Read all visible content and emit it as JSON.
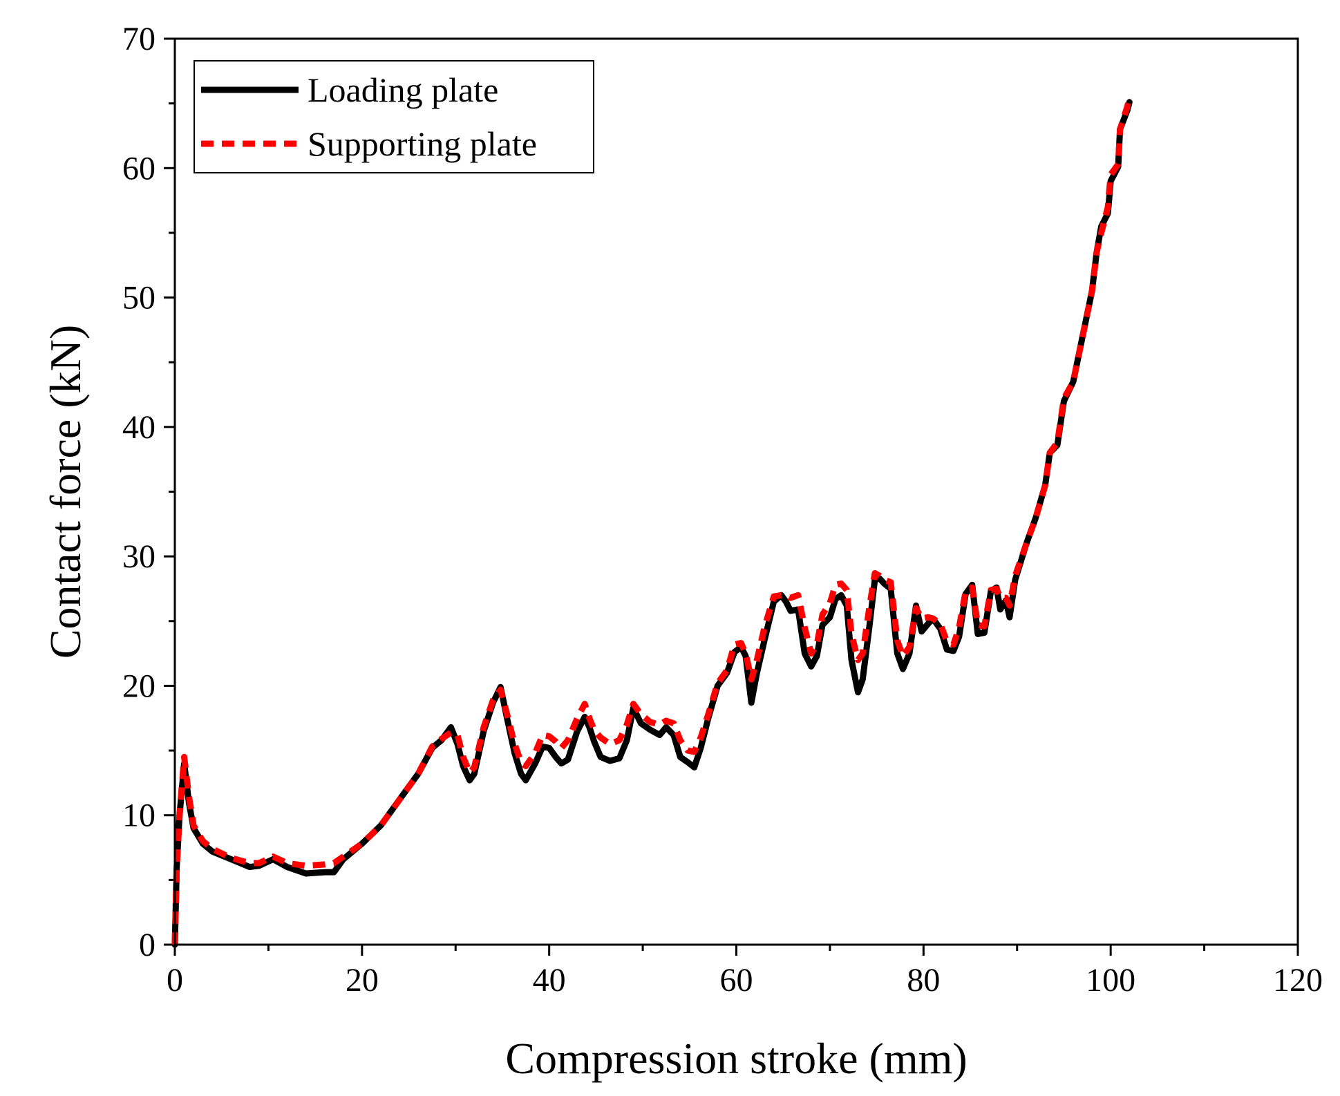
{
  "chart_data": {
    "type": "line",
    "title": "",
    "xlabel": "Compression stroke (mm)",
    "ylabel": "Contact force (kN)",
    "xlim": [
      0,
      120
    ],
    "ylim": [
      0,
      70
    ],
    "x_ticks": [
      0,
      20,
      40,
      60,
      80,
      100,
      120
    ],
    "y_ticks": [
      0,
      10,
      20,
      30,
      40,
      50,
      60,
      70
    ],
    "x_tick_labels": [
      "0",
      "20",
      "40",
      "60",
      "80",
      "100",
      "120"
    ],
    "y_tick_labels": [
      "0",
      "10",
      "20",
      "30",
      "40",
      "50",
      "60",
      "70"
    ],
    "grid": false,
    "legend_position": "top-left",
    "series": [
      {
        "name": "Loading plate",
        "color": "#000000",
        "style": "solid",
        "points": [
          [
            0,
            0
          ],
          [
            0.2,
            6
          ],
          [
            0.5,
            10
          ],
          [
            1,
            14
          ],
          [
            1.5,
            11
          ],
          [
            2,
            9
          ],
          [
            3,
            7.8
          ],
          [
            4,
            7.2
          ],
          [
            6,
            6.6
          ],
          [
            8,
            6
          ],
          [
            9,
            6.1
          ],
          [
            10.5,
            6.6
          ],
          [
            12,
            6
          ],
          [
            14,
            5.5
          ],
          [
            16,
            5.6
          ],
          [
            17,
            5.6
          ],
          [
            18,
            6.6
          ],
          [
            20,
            7.8
          ],
          [
            22,
            9.2
          ],
          [
            24,
            11.2
          ],
          [
            26,
            13.2
          ],
          [
            27.5,
            15.2
          ],
          [
            28.5,
            15.8
          ],
          [
            29.5,
            16.8
          ],
          [
            30.2,
            15.5
          ],
          [
            30.8,
            13.8
          ],
          [
            31.5,
            12.7
          ],
          [
            32,
            13.2
          ],
          [
            33,
            16.5
          ],
          [
            34,
            18.7
          ],
          [
            34.8,
            19.9
          ],
          [
            35.5,
            17.5
          ],
          [
            36.3,
            14.8
          ],
          [
            37,
            13.2
          ],
          [
            37.5,
            12.7
          ],
          [
            38.5,
            14
          ],
          [
            39.3,
            15.3
          ],
          [
            40,
            15.2
          ],
          [
            40.7,
            14.5
          ],
          [
            41.3,
            14
          ],
          [
            42,
            14.3
          ],
          [
            43,
            16.5
          ],
          [
            43.8,
            17.6
          ],
          [
            44.3,
            16.8
          ],
          [
            44.8,
            15.7
          ],
          [
            45.5,
            14.5
          ],
          [
            46.5,
            14.2
          ],
          [
            47.5,
            14.4
          ],
          [
            48.3,
            15.8
          ],
          [
            49,
            18.3
          ],
          [
            49.8,
            17.1
          ],
          [
            50.8,
            16.6
          ],
          [
            51.8,
            16.2
          ],
          [
            52.5,
            16.8
          ],
          [
            53.3,
            16.2
          ],
          [
            54,
            14.5
          ],
          [
            54.8,
            14.1
          ],
          [
            55.5,
            13.7
          ],
          [
            56.2,
            15.2
          ],
          [
            57,
            17.5
          ],
          [
            58,
            20
          ],
          [
            59,
            21
          ],
          [
            59.8,
            22.6
          ],
          [
            60.5,
            23
          ],
          [
            61,
            22.3
          ],
          [
            61.6,
            18.7
          ],
          [
            62.2,
            21
          ],
          [
            63,
            23.5
          ],
          [
            64,
            26.5
          ],
          [
            64.8,
            27
          ],
          [
            65.3,
            26.5
          ],
          [
            65.8,
            25.8
          ],
          [
            66.6,
            25.9
          ],
          [
            67.3,
            22.5
          ],
          [
            68,
            21.5
          ],
          [
            68.6,
            22.3
          ],
          [
            69.2,
            24.7
          ],
          [
            70,
            25.3
          ],
          [
            70.6,
            26.7
          ],
          [
            71.2,
            27
          ],
          [
            71.8,
            26.2
          ],
          [
            72.3,
            22
          ],
          [
            73,
            19.5
          ],
          [
            73.5,
            20.5
          ],
          [
            74.2,
            24.5
          ],
          [
            74.8,
            28.2
          ],
          [
            75.3,
            28.3
          ],
          [
            75.8,
            27.9
          ],
          [
            76.5,
            27.5
          ],
          [
            77.2,
            22.5
          ],
          [
            77.8,
            21.3
          ],
          [
            78.5,
            22.5
          ],
          [
            79.2,
            26.2
          ],
          [
            79.8,
            24.2
          ],
          [
            80.5,
            24.8
          ],
          [
            81,
            25.2
          ],
          [
            81.8,
            24.4
          ],
          [
            82.5,
            22.8
          ],
          [
            83.2,
            22.7
          ],
          [
            83.8,
            23.8
          ],
          [
            84.5,
            27.1
          ],
          [
            85.2,
            27.8
          ],
          [
            85.8,
            24
          ],
          [
            86.5,
            24.1
          ],
          [
            87.2,
            27.3
          ],
          [
            87.8,
            27.6
          ],
          [
            88.2,
            25.9
          ],
          [
            88.8,
            26.6
          ],
          [
            89.2,
            25.3
          ],
          [
            89.8,
            28.2
          ],
          [
            91,
            31
          ],
          [
            92,
            33
          ],
          [
            93,
            35.5
          ],
          [
            93.5,
            38
          ],
          [
            94.3,
            38.6
          ],
          [
            95,
            42
          ],
          [
            96,
            43.5
          ],
          [
            97,
            47
          ],
          [
            98,
            50.5
          ],
          [
            98.5,
            53.5
          ],
          [
            99,
            55.5
          ],
          [
            99.7,
            56.5
          ],
          [
            100,
            59
          ],
          [
            100.8,
            60.1
          ],
          [
            101,
            63
          ],
          [
            101.8,
            64.5
          ],
          [
            102,
            65.1
          ]
        ]
      },
      {
        "name": "Supporting plate",
        "color": "#ff0000",
        "style": "dashed",
        "points": [
          [
            0,
            0
          ],
          [
            0.2,
            6
          ],
          [
            0.5,
            10
          ],
          [
            1,
            14.5
          ],
          [
            1.5,
            11.5
          ],
          [
            2,
            9.2
          ],
          [
            3,
            8
          ],
          [
            4,
            7.4
          ],
          [
            6,
            6.7
          ],
          [
            8,
            6.3
          ],
          [
            9,
            6.3
          ],
          [
            10.5,
            6.8
          ],
          [
            12,
            6.3
          ],
          [
            14,
            6.1
          ],
          [
            16,
            6.2
          ],
          [
            17,
            6.3
          ],
          [
            18,
            6.8
          ],
          [
            20,
            7.8
          ],
          [
            22,
            9.2
          ],
          [
            24,
            11.2
          ],
          [
            26,
            13.2
          ],
          [
            27.5,
            15.3
          ],
          [
            28.5,
            15.9
          ],
          [
            29.5,
            16.4
          ],
          [
            30.2,
            16.2
          ],
          [
            30.8,
            14.5
          ],
          [
            31.5,
            13.3
          ],
          [
            32,
            13.7
          ],
          [
            33,
            16.8
          ],
          [
            34,
            18.9
          ],
          [
            34.8,
            19.7
          ],
          [
            35.5,
            17.8
          ],
          [
            36.3,
            15.5
          ],
          [
            37,
            14.1
          ],
          [
            37.5,
            13.8
          ],
          [
            38.5,
            14.8
          ],
          [
            39.3,
            16.2
          ],
          [
            40,
            16.1
          ],
          [
            40.7,
            15.7
          ],
          [
            41.3,
            15.2
          ],
          [
            42,
            15.8
          ],
          [
            43,
            17.5
          ],
          [
            43.8,
            18.6
          ],
          [
            44.3,
            17.5
          ],
          [
            44.8,
            16.6
          ],
          [
            45.5,
            16
          ],
          [
            46.5,
            15.5
          ],
          [
            47.5,
            15.8
          ],
          [
            48.3,
            17
          ],
          [
            49,
            18.6
          ],
          [
            49.8,
            17.8
          ],
          [
            50.8,
            17.2
          ],
          [
            51.8,
            17
          ],
          [
            52.5,
            17.3
          ],
          [
            53.3,
            17.1
          ],
          [
            54,
            15.8
          ],
          [
            54.8,
            15
          ],
          [
            55.5,
            14.9
          ],
          [
            56.2,
            16
          ],
          [
            57,
            17.8
          ],
          [
            58,
            20.2
          ],
          [
            59,
            21.2
          ],
          [
            59.8,
            23.2
          ],
          [
            60.5,
            23.3
          ],
          [
            61,
            22.5
          ],
          [
            61.6,
            20.5
          ],
          [
            62.2,
            22
          ],
          [
            63,
            24.5
          ],
          [
            64,
            26.9
          ],
          [
            64.8,
            27
          ],
          [
            65.3,
            27
          ],
          [
            65.8,
            26.8
          ],
          [
            66.6,
            27
          ],
          [
            67.3,
            24.5
          ],
          [
            68,
            22.5
          ],
          [
            68.6,
            23.2
          ],
          [
            69.2,
            25.5
          ],
          [
            70,
            26.4
          ],
          [
            70.6,
            27.8
          ],
          [
            71.2,
            27.9
          ],
          [
            71.8,
            27.4
          ],
          [
            72.3,
            24
          ],
          [
            73,
            22
          ],
          [
            73.5,
            22.5
          ],
          [
            74.2,
            26
          ],
          [
            74.8,
            28.7
          ],
          [
            75.3,
            28.5
          ],
          [
            75.8,
            28.2
          ],
          [
            76.5,
            28
          ],
          [
            77.2,
            23.5
          ],
          [
            77.8,
            22.3
          ],
          [
            78.5,
            23
          ],
          [
            79.2,
            26
          ],
          [
            79.8,
            25.2
          ],
          [
            80.5,
            25.3
          ],
          [
            81,
            25.2
          ],
          [
            81.8,
            24.8
          ],
          [
            82.5,
            23.4
          ],
          [
            83.2,
            23.2
          ],
          [
            83.8,
            24.5
          ],
          [
            84.5,
            27.3
          ],
          [
            85.2,
            27.6
          ],
          [
            85.8,
            24.7
          ],
          [
            86.5,
            24.6
          ],
          [
            87.2,
            27.4
          ],
          [
            87.8,
            27.5
          ],
          [
            88.2,
            26.8
          ],
          [
            88.8,
            26.8
          ],
          [
            89.2,
            26.2
          ],
          [
            89.8,
            28.5
          ],
          [
            91,
            31
          ],
          [
            92,
            33
          ],
          [
            93,
            35.5
          ],
          [
            93.5,
            38
          ],
          [
            94.3,
            38.8
          ],
          [
            95,
            42.2
          ],
          [
            96,
            43.5
          ],
          [
            97,
            47
          ],
          [
            98,
            50.5
          ],
          [
            98.5,
            53.5
          ],
          [
            99,
            55
          ],
          [
            99.7,
            57
          ],
          [
            100,
            59.5
          ],
          [
            100.8,
            60.3
          ],
          [
            101,
            63
          ],
          [
            101.8,
            64.8
          ],
          [
            102,
            65.5
          ]
        ]
      }
    ]
  }
}
